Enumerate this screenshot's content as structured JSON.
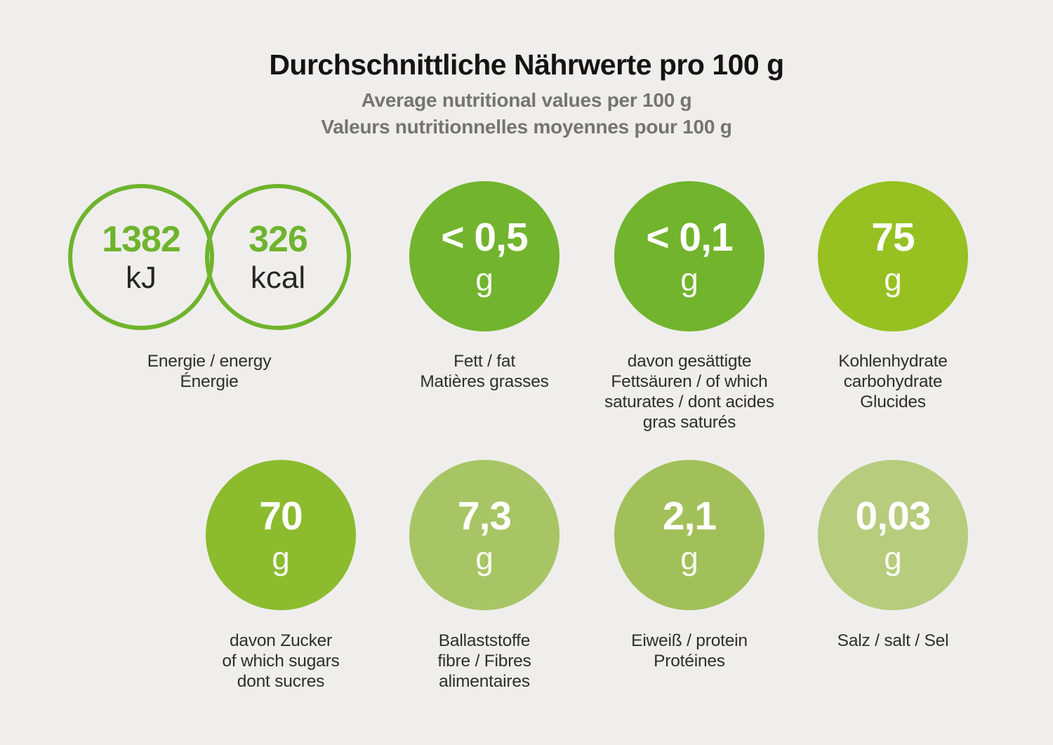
{
  "header": {
    "title": "Durchschnittliche Nährwerte pro 100 g",
    "subtitle_en": "Average nutritional values per 100 g",
    "subtitle_fr": "Valeurs nutritionnelles moyennes pour 100 g"
  },
  "colors": {
    "background": "#EFEEEC",
    "accent_green": "#6FB42D",
    "title_text": "#141414",
    "subtitle_text": "#747474",
    "label_text": "#2E2E2E"
  },
  "energy": {
    "kj": {
      "value": "1382",
      "unit": "kJ"
    },
    "kcal": {
      "value": "326",
      "unit": "kcal"
    },
    "label_lines": [
      "Energie / energy",
      "Énergie"
    ]
  },
  "nutrients": [
    {
      "id": "fat",
      "value": "< 0,5",
      "unit": "g",
      "color": "#72B42D",
      "label_lines": [
        "Fett / fat",
        "Matières grasses"
      ]
    },
    {
      "id": "saturates",
      "value": "< 0,1",
      "unit": "g",
      "color": "#72B42D",
      "label_lines": [
        "davon gesättigte",
        "Fettsäuren / of which",
        "saturates / dont acides",
        "gras saturés"
      ]
    },
    {
      "id": "carbohydrate",
      "value": "75",
      "unit": "g",
      "color": "#96C121",
      "label_lines": [
        "Kohlenhydrate",
        "carbohydrate",
        "Glucides"
      ]
    },
    {
      "id": "sugars",
      "value": "70",
      "unit": "g",
      "color": "#8CBB2E",
      "label_lines": [
        "davon Zucker",
        "of which sugars",
        "dont sucres"
      ]
    },
    {
      "id": "fibre",
      "value": "7,3",
      "unit": "g",
      "color": "#A8C565",
      "label_lines": [
        "Ballaststoffe",
        "fibre / Fibres",
        "alimentaires"
      ]
    },
    {
      "id": "protein",
      "value": "2,1",
      "unit": "g",
      "color": "#A2C05A",
      "label_lines": [
        "Eiweiß / protein",
        "Protéines"
      ]
    },
    {
      "id": "salt",
      "value": "0,03",
      "unit": "g",
      "color": "#B8CC7D",
      "label_lines": [
        "Salz / salt / Sel"
      ]
    }
  ]
}
